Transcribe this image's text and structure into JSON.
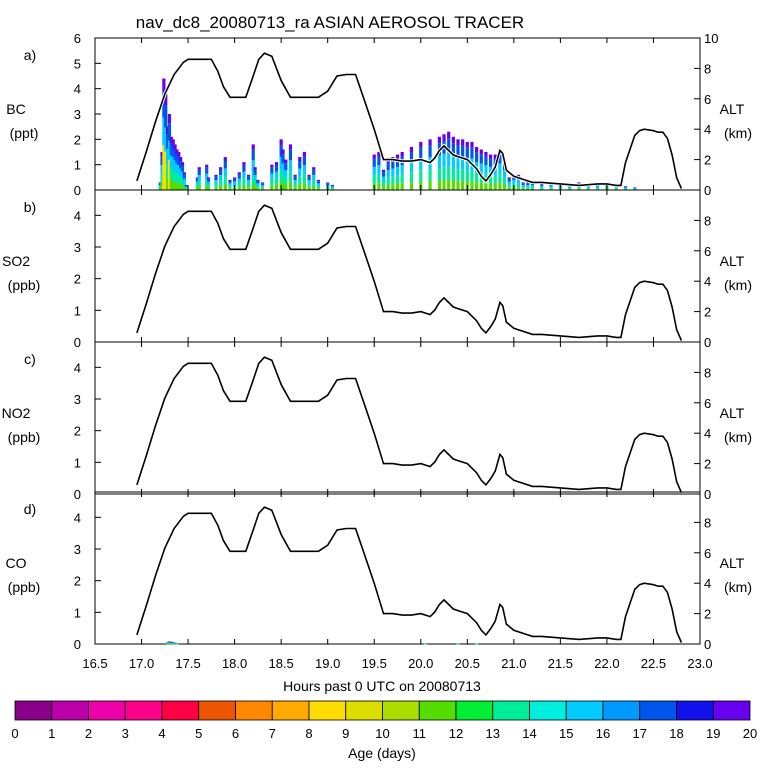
{
  "chart_data": {
    "type": "multi-panel area + line",
    "title": "nav_dc8_20080713_ra ASIAN AEROSOL TRACER",
    "xlabel": "Hours past 0 UTC on 20080713",
    "xlim": [
      16.5,
      23.0
    ],
    "xticks": [
      "16.5",
      "17.0",
      "17.5",
      "18.0",
      "18.5",
      "19.0",
      "19.5",
      "20.0",
      "20.5",
      "21.0",
      "21.5",
      "22.0",
      "22.5",
      "23.0"
    ],
    "right_axis": {
      "label": "ALT",
      "unit": "(km)",
      "ylim": [
        0,
        10
      ]
    },
    "altitude_series": {
      "name": "ALT (km)",
      "x": [
        16.95,
        17.05,
        17.15,
        17.25,
        17.35,
        17.45,
        17.5,
        17.55,
        17.65,
        17.75,
        17.82,
        17.88,
        17.95,
        18.05,
        18.12,
        18.2,
        18.26,
        18.32,
        18.4,
        18.5,
        18.6,
        18.7,
        18.78,
        18.82,
        18.9,
        19.0,
        19.1,
        19.2,
        19.25,
        19.3,
        19.4,
        19.5,
        19.6,
        19.7,
        19.8,
        19.9,
        20.0,
        20.1,
        20.15,
        20.2,
        20.25,
        20.3,
        20.35,
        20.4,
        20.5,
        20.6,
        20.65,
        20.7,
        20.75,
        20.8,
        20.85,
        20.88,
        20.92,
        21.0,
        21.1,
        21.2,
        21.3,
        21.5,
        21.7,
        21.9,
        22.0,
        22.1,
        22.15,
        22.2,
        22.3,
        22.35,
        22.4,
        22.5,
        22.55,
        22.6,
        22.65,
        22.7,
        22.75,
        22.8
      ],
      "y": [
        0.6,
        2.5,
        4.5,
        6.3,
        7.6,
        8.4,
        8.6,
        8.6,
        8.6,
        8.6,
        7.8,
        6.8,
        6.1,
        6.1,
        6.1,
        7.5,
        8.6,
        9.0,
        8.8,
        7.2,
        6.1,
        6.1,
        6.1,
        6.1,
        6.1,
        6.5,
        7.5,
        7.6,
        7.6,
        7.6,
        5.8,
        4.0,
        2.0,
        2.0,
        1.9,
        1.9,
        2.0,
        1.8,
        2.1,
        2.6,
        2.9,
        2.6,
        2.3,
        2.2,
        2.0,
        1.4,
        0.9,
        0.6,
        1.0,
        1.5,
        2.6,
        2.4,
        1.3,
        0.9,
        0.7,
        0.5,
        0.5,
        0.4,
        0.3,
        0.4,
        0.4,
        0.3,
        0.3,
        1.8,
        3.6,
        3.9,
        4.0,
        3.9,
        3.8,
        3.8,
        3.4,
        2.3,
        0.8,
        0.1
      ]
    },
    "panels": [
      {
        "label": "a)",
        "species": "BC",
        "unit": "(ppt)",
        "ylim": [
          0,
          6
        ],
        "yticks": [
          "0",
          "1",
          "2",
          "3",
          "4",
          "5",
          "6"
        ],
        "alt_ticks": [
          "0",
          "2",
          "4",
          "6",
          "8",
          "10"
        ],
        "tracer_series": {
          "x": [
            17.2,
            17.22,
            17.24,
            17.26,
            17.28,
            17.3,
            17.32,
            17.34,
            17.36,
            17.38,
            17.4,
            17.42,
            17.44,
            17.46,
            17.48,
            17.6,
            17.62,
            17.7,
            17.72,
            17.8,
            17.85,
            17.9,
            17.95,
            18.0,
            18.05,
            18.1,
            18.15,
            18.2,
            18.22,
            18.25,
            18.3,
            18.4,
            18.45,
            18.5,
            18.52,
            18.55,
            18.6,
            18.65,
            18.7,
            18.75,
            18.8,
            18.85,
            18.9,
            19.0,
            19.05,
            19.5,
            19.55,
            19.6,
            19.65,
            19.7,
            19.75,
            19.8,
            19.9,
            20.0,
            20.1,
            20.2,
            20.25,
            20.3,
            20.35,
            20.4,
            20.45,
            20.5,
            20.55,
            20.6,
            20.65,
            20.7,
            20.75,
            20.8,
            20.85,
            20.9,
            20.95,
            21.0,
            21.05,
            21.1,
            21.15,
            21.2,
            21.3,
            21.4,
            21.5,
            21.6,
            21.7,
            21.8,
            21.9,
            22.0,
            22.1,
            22.2,
            22.3
          ],
          "y": [
            0.3,
            1.5,
            4.4,
            3.8,
            2.5,
            3.0,
            2.1,
            2.0,
            1.8,
            1.6,
            1.5,
            1.3,
            1.1,
            0.7,
            0.2,
            0.5,
            0.9,
            1.0,
            0.5,
            0.6,
            0.9,
            1.3,
            0.4,
            0.5,
            0.7,
            1.1,
            0.6,
            1.8,
            0.9,
            0.4,
            0.3,
            1.0,
            1.1,
            2.0,
            1.6,
            1.2,
            1.8,
            0.6,
            1.3,
            1.5,
            0.6,
            0.9,
            0.4,
            0.3,
            0.2,
            1.4,
            1.5,
            0.8,
            1.2,
            1.3,
            1.4,
            1.5,
            1.7,
            1.9,
            2.0,
            2.1,
            2.2,
            2.3,
            2.1,
            2.0,
            2.0,
            1.9,
            1.9,
            1.7,
            1.6,
            1.5,
            1.4,
            1.4,
            1.6,
            1.2,
            0.5,
            0.6,
            0.6,
            0.3,
            0.3,
            0.3,
            0.25,
            0.25,
            0.2,
            0.2,
            0.3,
            0.2,
            0.2,
            0.3,
            0.25,
            0.15,
            0.1
          ],
          "color_by": "Age (days)"
        }
      },
      {
        "label": "b)",
        "species": "SO2",
        "unit": "(ppb)",
        "ylim": [
          0,
          4.8
        ],
        "yticks": [
          "0",
          "1",
          "2",
          "3",
          "4"
        ],
        "alt_ticks": [
          "0",
          "2",
          "4",
          "6",
          "8"
        ],
        "tracer_series": null
      },
      {
        "label": "c)",
        "species": "NO2",
        "unit": "(ppb)",
        "ylim": [
          0,
          4.8
        ],
        "yticks": [
          "0",
          "1",
          "2",
          "3",
          "4"
        ],
        "alt_ticks": [
          "0",
          "2",
          "4",
          "6",
          "8"
        ],
        "tracer_series": null
      },
      {
        "label": "d)",
        "species": "CO",
        "unit": "(ppb)",
        "ylim": [
          0,
          4.8
        ],
        "yticks": [
          "0",
          "1",
          "2",
          "3",
          "4"
        ],
        "alt_ticks": [
          "0",
          "2",
          "4",
          "6",
          "8"
        ],
        "tracer_series": {
          "x": [
            17.28,
            17.3,
            17.32,
            17.34,
            17.36,
            17.38,
            20.05,
            20.4,
            20.6
          ],
          "y": [
            0.05,
            0.08,
            0.07,
            0.05,
            0.04,
            0.02,
            0.02,
            0.02,
            0.01
          ],
          "color_by": "Age (days)"
        }
      }
    ],
    "colorbar": {
      "label": "Age (days)",
      "ticks": [
        "0",
        "1",
        "2",
        "3",
        "4",
        "5",
        "6",
        "7",
        "8",
        "9",
        "10",
        "11",
        "12",
        "13",
        "14",
        "15",
        "16",
        "17",
        "18",
        "19",
        "20"
      ],
      "colors": [
        "#880088",
        "#bb00aa",
        "#ee00aa",
        "#ff0088",
        "#ff0044",
        "#ee5500",
        "#ff8800",
        "#ffaa00",
        "#ffdd00",
        "#dddd00",
        "#aadd00",
        "#55dd00",
        "#00ee33",
        "#00ee99",
        "#00eedd",
        "#00ccff",
        "#0099ff",
        "#0055ee",
        "#1111ee",
        "#6600ee"
      ]
    }
  }
}
